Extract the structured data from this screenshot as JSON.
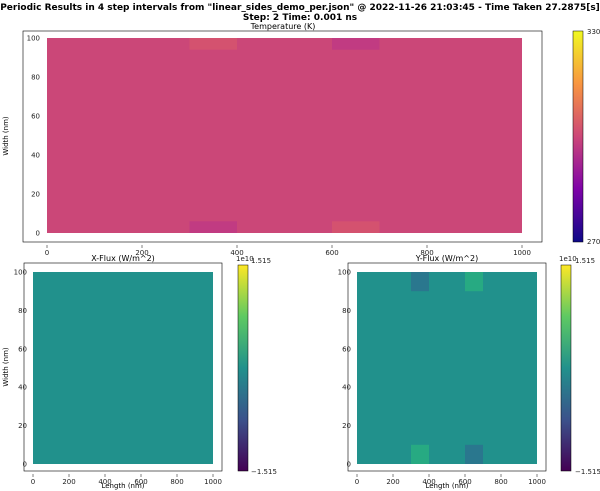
{
  "suptitle": {
    "line1": "Periodic Results in 4 step intervals from \"linear_sides_demo_per.json\" @ 2022-11-26 21:03:45 - Time Taken 27.2875[s]",
    "line2": "Step: 2   Time: 0.001 ns"
  },
  "colors": {
    "temperature_fill": "#cb4778",
    "flux_fill": "#21918c",
    "flux_dark": "#2c728e",
    "flux_light": "#28ae80",
    "temp_hot": "#d6556d",
    "temp_cool": "#bf3984"
  },
  "chart_data": [
    {
      "id": "temperature",
      "type": "heatmap",
      "title": "Temperature (K)",
      "xlabel": "",
      "ylabel": "Width (nm)",
      "xlim": [
        0,
        1000
      ],
      "ylim": [
        0,
        100
      ],
      "xticks": [
        "0",
        "200",
        "400",
        "600",
        "800",
        "1000"
      ],
      "yticks": [
        "0",
        "20",
        "40",
        "60",
        "80",
        "100"
      ],
      "base_value": 300,
      "regions": [
        {
          "x": [
            300,
            400
          ],
          "y": [
            94,
            100
          ],
          "value": 302
        },
        {
          "x": [
            600,
            700
          ],
          "y": [
            94,
            100
          ],
          "value": 298
        },
        {
          "x": [
            300,
            400
          ],
          "y": [
            0,
            6
          ],
          "value": 298
        },
        {
          "x": [
            600,
            700
          ],
          "y": [
            0,
            6
          ],
          "value": 302
        }
      ],
      "colorbar": {
        "min": "270",
        "max": "330",
        "cmap": "plasma"
      }
    },
    {
      "id": "xflux",
      "type": "heatmap",
      "title": "X-Flux (W/m^2)",
      "xlabel": "Length (nm)",
      "ylabel": "Width (nm)",
      "xlim": [
        0,
        1000
      ],
      "ylim": [
        0,
        100
      ],
      "xticks": [
        "0",
        "200",
        "400",
        "600",
        "800",
        "1000"
      ],
      "yticks": [
        "0",
        "20",
        "40",
        "60",
        "80",
        "100"
      ],
      "base_value": 0,
      "regions": [],
      "colorbar": {
        "multiplier": "1e10",
        "min": "−1.515",
        "max": "1.515",
        "cmap": "viridis"
      }
    },
    {
      "id": "yflux",
      "type": "heatmap",
      "title": "Y-Flux (W/m^2)",
      "xlabel": "Length (nm)",
      "ylabel": "",
      "xlim": [
        0,
        1000
      ],
      "ylim": [
        0,
        100
      ],
      "xticks": [
        "0",
        "200",
        "400",
        "600",
        "800",
        "1000"
      ],
      "yticks": [
        "0",
        "20",
        "40",
        "60",
        "80",
        "100"
      ],
      "base_value": 0,
      "regions": [
        {
          "x": [
            300,
            400
          ],
          "y": [
            90,
            100
          ],
          "value": -0.3
        },
        {
          "x": [
            600,
            700
          ],
          "y": [
            90,
            100
          ],
          "value": 0.3
        },
        {
          "x": [
            300,
            400
          ],
          "y": [
            0,
            10
          ],
          "value": 0.3
        },
        {
          "x": [
            600,
            700
          ],
          "y": [
            0,
            10
          ],
          "value": -0.3
        }
      ],
      "colorbar": {
        "multiplier": "1e10",
        "min": "−1.515",
        "max": "1.515",
        "cmap": "viridis"
      }
    }
  ]
}
